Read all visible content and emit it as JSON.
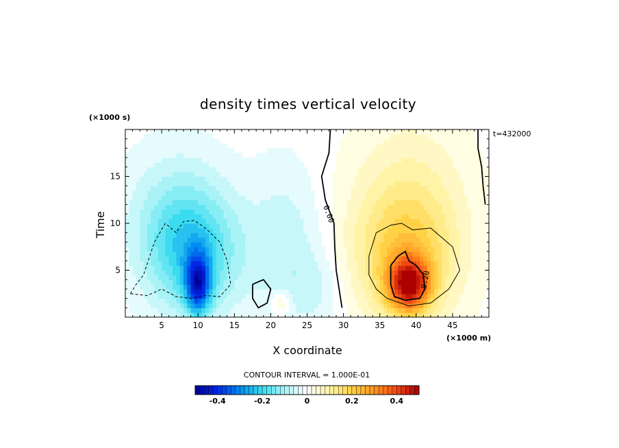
{
  "chart_data": {
    "type": "heatmap",
    "title": "density times vertical velocity",
    "xlabel": "X coordinate",
    "ylabel": "Time",
    "x_units": "(×1000 m)",
    "y_units": "(×1000 s)",
    "xlim": [
      0,
      50
    ],
    "ylim": [
      0,
      20
    ],
    "x_ticks": [
      5,
      10,
      15,
      20,
      25,
      30,
      35,
      40,
      45
    ],
    "y_ticks": [
      5,
      10,
      15
    ],
    "time_label": "t=432000",
    "contour_interval_label": "CONTOUR INTERVAL = 1.000E-01",
    "contour_labels": [
      {
        "text": "0.00",
        "x": 28.0,
        "y": 11.0,
        "rotate": 70
      },
      {
        "text": "0.20",
        "x": 41.2,
        "y": 4.0,
        "rotate": -80
      }
    ],
    "colorbar": {
      "range": [
        -0.5,
        0.5
      ],
      "tick_values": [
        -0.4,
        -0.2,
        0,
        0.2,
        0.4
      ],
      "tick_labels": [
        "-0.4",
        "-0.2",
        "0",
        "0.2",
        "0.4"
      ]
    },
    "field_features": [
      {
        "name": "negative-core",
        "x": 10.0,
        "y": 3.5,
        "amplitude": -0.32,
        "sx": 1.2,
        "sy": 2.3
      },
      {
        "name": "negative-body",
        "x": 9.5,
        "y": 6.5,
        "amplitude": -0.18,
        "sx": 4.5,
        "sy": 4.5
      },
      {
        "name": "negative-tail",
        "x": 7.0,
        "y": 11.0,
        "amplitude": -0.09,
        "sx": 5.0,
        "sy": 5.0
      },
      {
        "name": "negative-mid",
        "x": 22.0,
        "y": 8.0,
        "amplitude": -0.07,
        "sx": 3.5,
        "sy": 6.0
      },
      {
        "name": "negative-lower",
        "x": 26.0,
        "y": 3.0,
        "amplitude": -0.05,
        "sx": 3.0,
        "sy": 3.0
      },
      {
        "name": "positive-core",
        "x": 39.0,
        "y": 3.5,
        "amplitude": 0.38,
        "sx": 2.0,
        "sy": 2.0
      },
      {
        "name": "positive-body",
        "x": 38.5,
        "y": 6.0,
        "amplitude": 0.17,
        "sx": 5.0,
        "sy": 5.0
      },
      {
        "name": "positive-tail",
        "x": 39.0,
        "y": 13.0,
        "amplitude": 0.08,
        "sx": 6.0,
        "sy": 6.5
      },
      {
        "name": "positive-small",
        "x": 21.5,
        "y": 1.5,
        "amplitude": 0.08,
        "sx": 1.0,
        "sy": 1.0
      }
    ],
    "contour_lines": [
      {
        "name": "zero-contour-line",
        "level": 0.0,
        "style": "solid-thick",
        "points": [
          [
            28.2,
            20
          ],
          [
            28.0,
            17.5
          ],
          [
            27.0,
            15
          ],
          [
            27.5,
            12.5
          ],
          [
            28.7,
            10
          ],
          [
            28.8,
            7.5
          ],
          [
            29.0,
            5
          ],
          [
            29.5,
            2.5
          ],
          [
            29.8,
            1.0
          ]
        ]
      },
      {
        "name": "negative-contour-line",
        "level": -0.1,
        "style": "dashed",
        "points": [
          [
            0.7,
            2.5
          ],
          [
            1.5,
            3.5
          ],
          [
            2.5,
            4.5
          ],
          [
            4.0,
            8.0
          ],
          [
            5.5,
            10.0
          ],
          [
            7.0,
            9.0
          ],
          [
            8.0,
            10.2
          ],
          [
            9.5,
            10.3
          ],
          [
            11.0,
            9.5
          ],
          [
            13.0,
            8.0
          ],
          [
            14.0,
            6.0
          ],
          [
            14.5,
            3.5
          ],
          [
            13.0,
            2.2
          ],
          [
            11.0,
            2.3
          ],
          [
            9.0,
            2.0
          ],
          [
            7.0,
            2.2
          ],
          [
            5.0,
            3.0
          ],
          [
            3.0,
            2.3
          ],
          [
            0.7,
            2.5
          ]
        ]
      },
      {
        "name": "positive-contour-line",
        "level": 0.1,
        "style": "solid-thin",
        "points": [
          [
            33.5,
            6.5
          ],
          [
            34.5,
            9.0
          ],
          [
            36.5,
            9.8
          ],
          [
            38.0,
            10.0
          ],
          [
            39.5,
            9.3
          ],
          [
            42.0,
            9.5
          ],
          [
            45.0,
            7.5
          ],
          [
            46.0,
            5.0
          ],
          [
            44.5,
            3.0
          ],
          [
            42.0,
            1.5
          ],
          [
            39.0,
            1.2
          ],
          [
            36.0,
            2.0
          ],
          [
            34.5,
            3.0
          ],
          [
            33.5,
            4.5
          ],
          [
            33.5,
            6.5
          ]
        ]
      },
      {
        "name": "positive-contour-line-inner",
        "level": 0.2,
        "style": "solid-thick",
        "points": [
          [
            36.5,
            5.5
          ],
          [
            37.5,
            6.5
          ],
          [
            38.5,
            7.0
          ],
          [
            39.0,
            6.0
          ],
          [
            40.0,
            5.5
          ],
          [
            41.0,
            4.5
          ],
          [
            41.2,
            3.0
          ],
          [
            40.5,
            2.0
          ],
          [
            38.5,
            1.8
          ],
          [
            37.0,
            2.2
          ],
          [
            36.5,
            3.5
          ],
          [
            36.5,
            5.5
          ]
        ]
      },
      {
        "name": "zero-contour-line-small",
        "level": 0.0,
        "style": "solid-thick",
        "points": [
          [
            17.5,
            3.5
          ],
          [
            19.0,
            4.0
          ],
          [
            20.0,
            3.0
          ],
          [
            19.5,
            1.5
          ],
          [
            18.3,
            1.0
          ],
          [
            17.5,
            2.0
          ],
          [
            17.5,
            3.5
          ]
        ]
      },
      {
        "name": "zero-contour-line-right",
        "level": 0.0,
        "style": "solid-thick",
        "points": [
          [
            48.5,
            20
          ],
          [
            48.5,
            18
          ],
          [
            49.0,
            16
          ],
          [
            49.2,
            14
          ],
          [
            49.5,
            12
          ]
        ]
      }
    ]
  }
}
